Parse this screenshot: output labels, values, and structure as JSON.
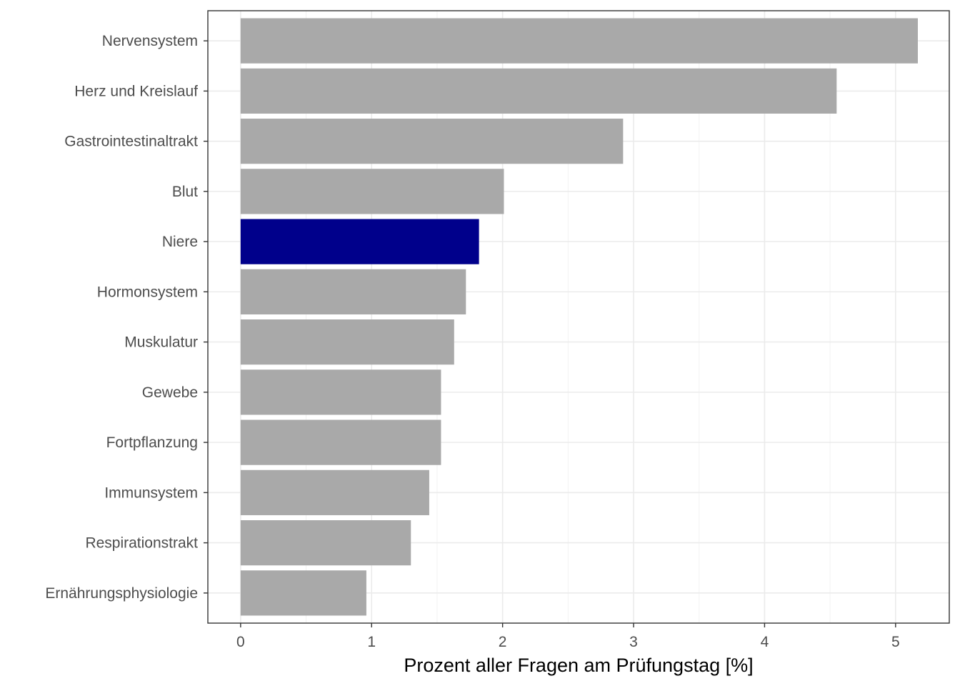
{
  "chart_data": {
    "type": "bar",
    "orientation": "horizontal",
    "categories": [
      "Nervensystem",
      "Herz und Kreislauf",
      "Gastrointestinaltrakt",
      "Blut",
      "Niere",
      "Hormonsystem",
      "Muskulatur",
      "Gewebe",
      "Fortpflanzung",
      "Immunsystem",
      "Respirationstrakt",
      "Ernährungsphysiologie"
    ],
    "values": [
      5.17,
      4.55,
      2.92,
      2.01,
      1.82,
      1.72,
      1.63,
      1.53,
      1.53,
      1.44,
      1.3,
      0.96
    ],
    "highlight_category": "Niere",
    "colors": {
      "default": "#a9a9a9",
      "highlight": "#00008b"
    },
    "xlabel": "Prozent aller Fragen am Prüfungstag [%]",
    "ylabel": "",
    "xlim": [
      -0.25,
      5.41
    ],
    "xticks": [
      0,
      1,
      2,
      3,
      4,
      5
    ],
    "xtick_labels": [
      "0",
      "1",
      "2",
      "3",
      "4",
      "5"
    ],
    "grid": true
  }
}
